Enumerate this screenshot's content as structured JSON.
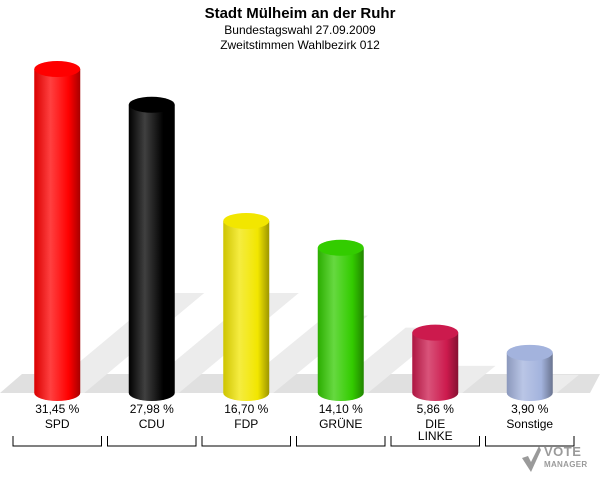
{
  "header": {
    "title": "Stadt Mülheim an der Ruhr",
    "subtitle1": "Bundestagswahl 27.09.2009",
    "subtitle2": "Zweitstimmen Wahlbezirk 012"
  },
  "chart_data": {
    "type": "bar",
    "title": "Stadt Mülheim an der Ruhr",
    "categories": [
      "SPD",
      "CDU",
      "FDP",
      "GRÜNE",
      "DIE LINKE",
      "Sonstige"
    ],
    "values": [
      31.45,
      27.98,
      16.7,
      14.1,
      5.86,
      3.9
    ],
    "value_labels": [
      "31,45 %",
      "27,98 %",
      "16,70 %",
      "14,10 %",
      "5,86 %",
      "3,90 %"
    ],
    "colors": [
      "#ff0000",
      "#000000",
      "#f2e600",
      "#33cc00",
      "#cc1a4d",
      "#a3b3dd"
    ],
    "unit": "%"
  },
  "logo": {
    "line1": "VOTE",
    "line2": "MANAGER"
  }
}
